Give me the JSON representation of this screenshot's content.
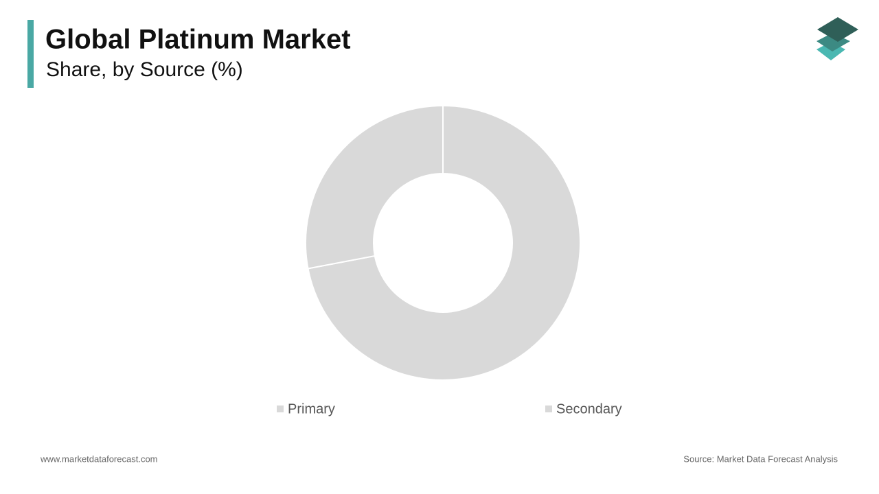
{
  "chart_data": {
    "type": "donut",
    "title": "Global Platinum Market",
    "subtitle": "Share, by Source (%)",
    "categories": [
      "Primary",
      "Secondary"
    ],
    "values": [
      72,
      28
    ],
    "colors": [
      "#d9d9d9",
      "#d9d9d9"
    ],
    "legend": "bottom"
  },
  "footer": {
    "website": "www.marketdataforecast.com",
    "source": "Source: Market Data Forecast Analysis"
  }
}
